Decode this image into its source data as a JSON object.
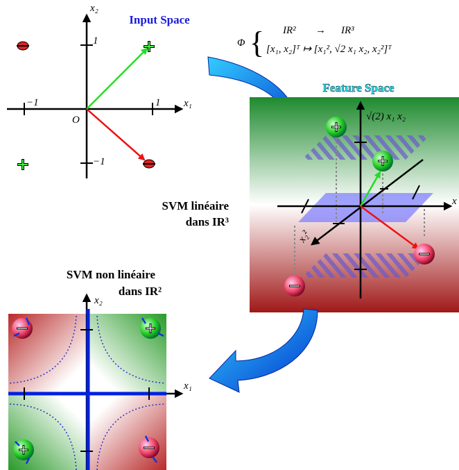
{
  "input_space": {
    "title": "Input Space",
    "x_label": "x₁",
    "y_label": "x₂",
    "tick_pos": "1",
    "tick_neg": "−1",
    "origin": "O"
  },
  "mapping": {
    "symbol": "Φ",
    "from": "IR²",
    "arrow": "→",
    "to": "IR³",
    "rule": "[x₁, x₂]ᵀ ↦ [x₁², √2 x₁ x₂, x₂²]ᵀ"
  },
  "feature_space": {
    "title": "Feature Space",
    "z_label": "√(2) x₁ x₂",
    "x_label": "x",
    "y_label": "x₂²"
  },
  "linear_label": [
    "SVM linéaire",
    "dans IR³"
  ],
  "nonlinear_label": [
    "SVM non linéaire",
    "dans IR²"
  ],
  "output_space": {
    "x_label": "x₁",
    "y_label": "x₂"
  }
}
